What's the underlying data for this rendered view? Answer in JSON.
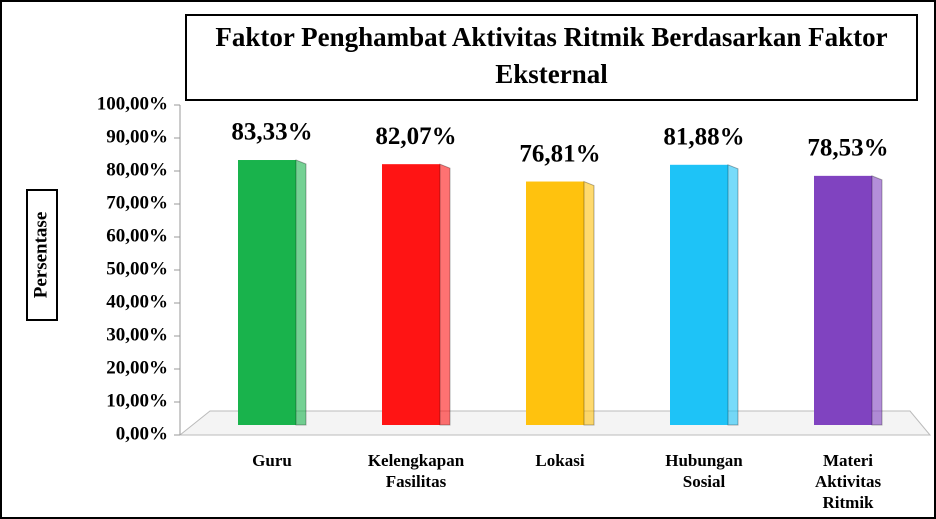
{
  "chart_data": {
    "type": "bar",
    "title": "Faktor Penghambat Aktivitas Ritmik Berdasarkan Faktor Eksternal",
    "y_label": "Persentase",
    "categories": [
      "Guru",
      "Kelengkapan Fasilitas",
      "Lokasi",
      "Hubungan Sosial",
      "Materi Aktivitas Ritmik"
    ],
    "values": [
      83.33,
      82.07,
      76.81,
      81.88,
      78.53
    ],
    "value_labels": [
      "83,33%",
      "82,07%",
      "76,81%",
      "81,88%",
      "78,53%"
    ],
    "colors": [
      "#19b34c",
      "#ff1414",
      "#ffc20e",
      "#1ec3f7",
      "#8043c0"
    ],
    "ylim": [
      0,
      100
    ],
    "yticks": [
      {
        "value": 0,
        "label": "0,00%"
      },
      {
        "value": 10,
        "label": "10,00%"
      },
      {
        "value": 20,
        "label": "20,00%"
      },
      {
        "value": 30,
        "label": "30,00%"
      },
      {
        "value": 40,
        "label": "40,00%"
      },
      {
        "value": 50,
        "label": "50,00%"
      },
      {
        "value": 60,
        "label": "60,00%"
      },
      {
        "value": 70,
        "label": "70,00%"
      },
      {
        "value": 80,
        "label": "80,00%"
      },
      {
        "value": 90,
        "label": "90,00%"
      },
      {
        "value": 100,
        "label": "100,00%"
      }
    ]
  }
}
